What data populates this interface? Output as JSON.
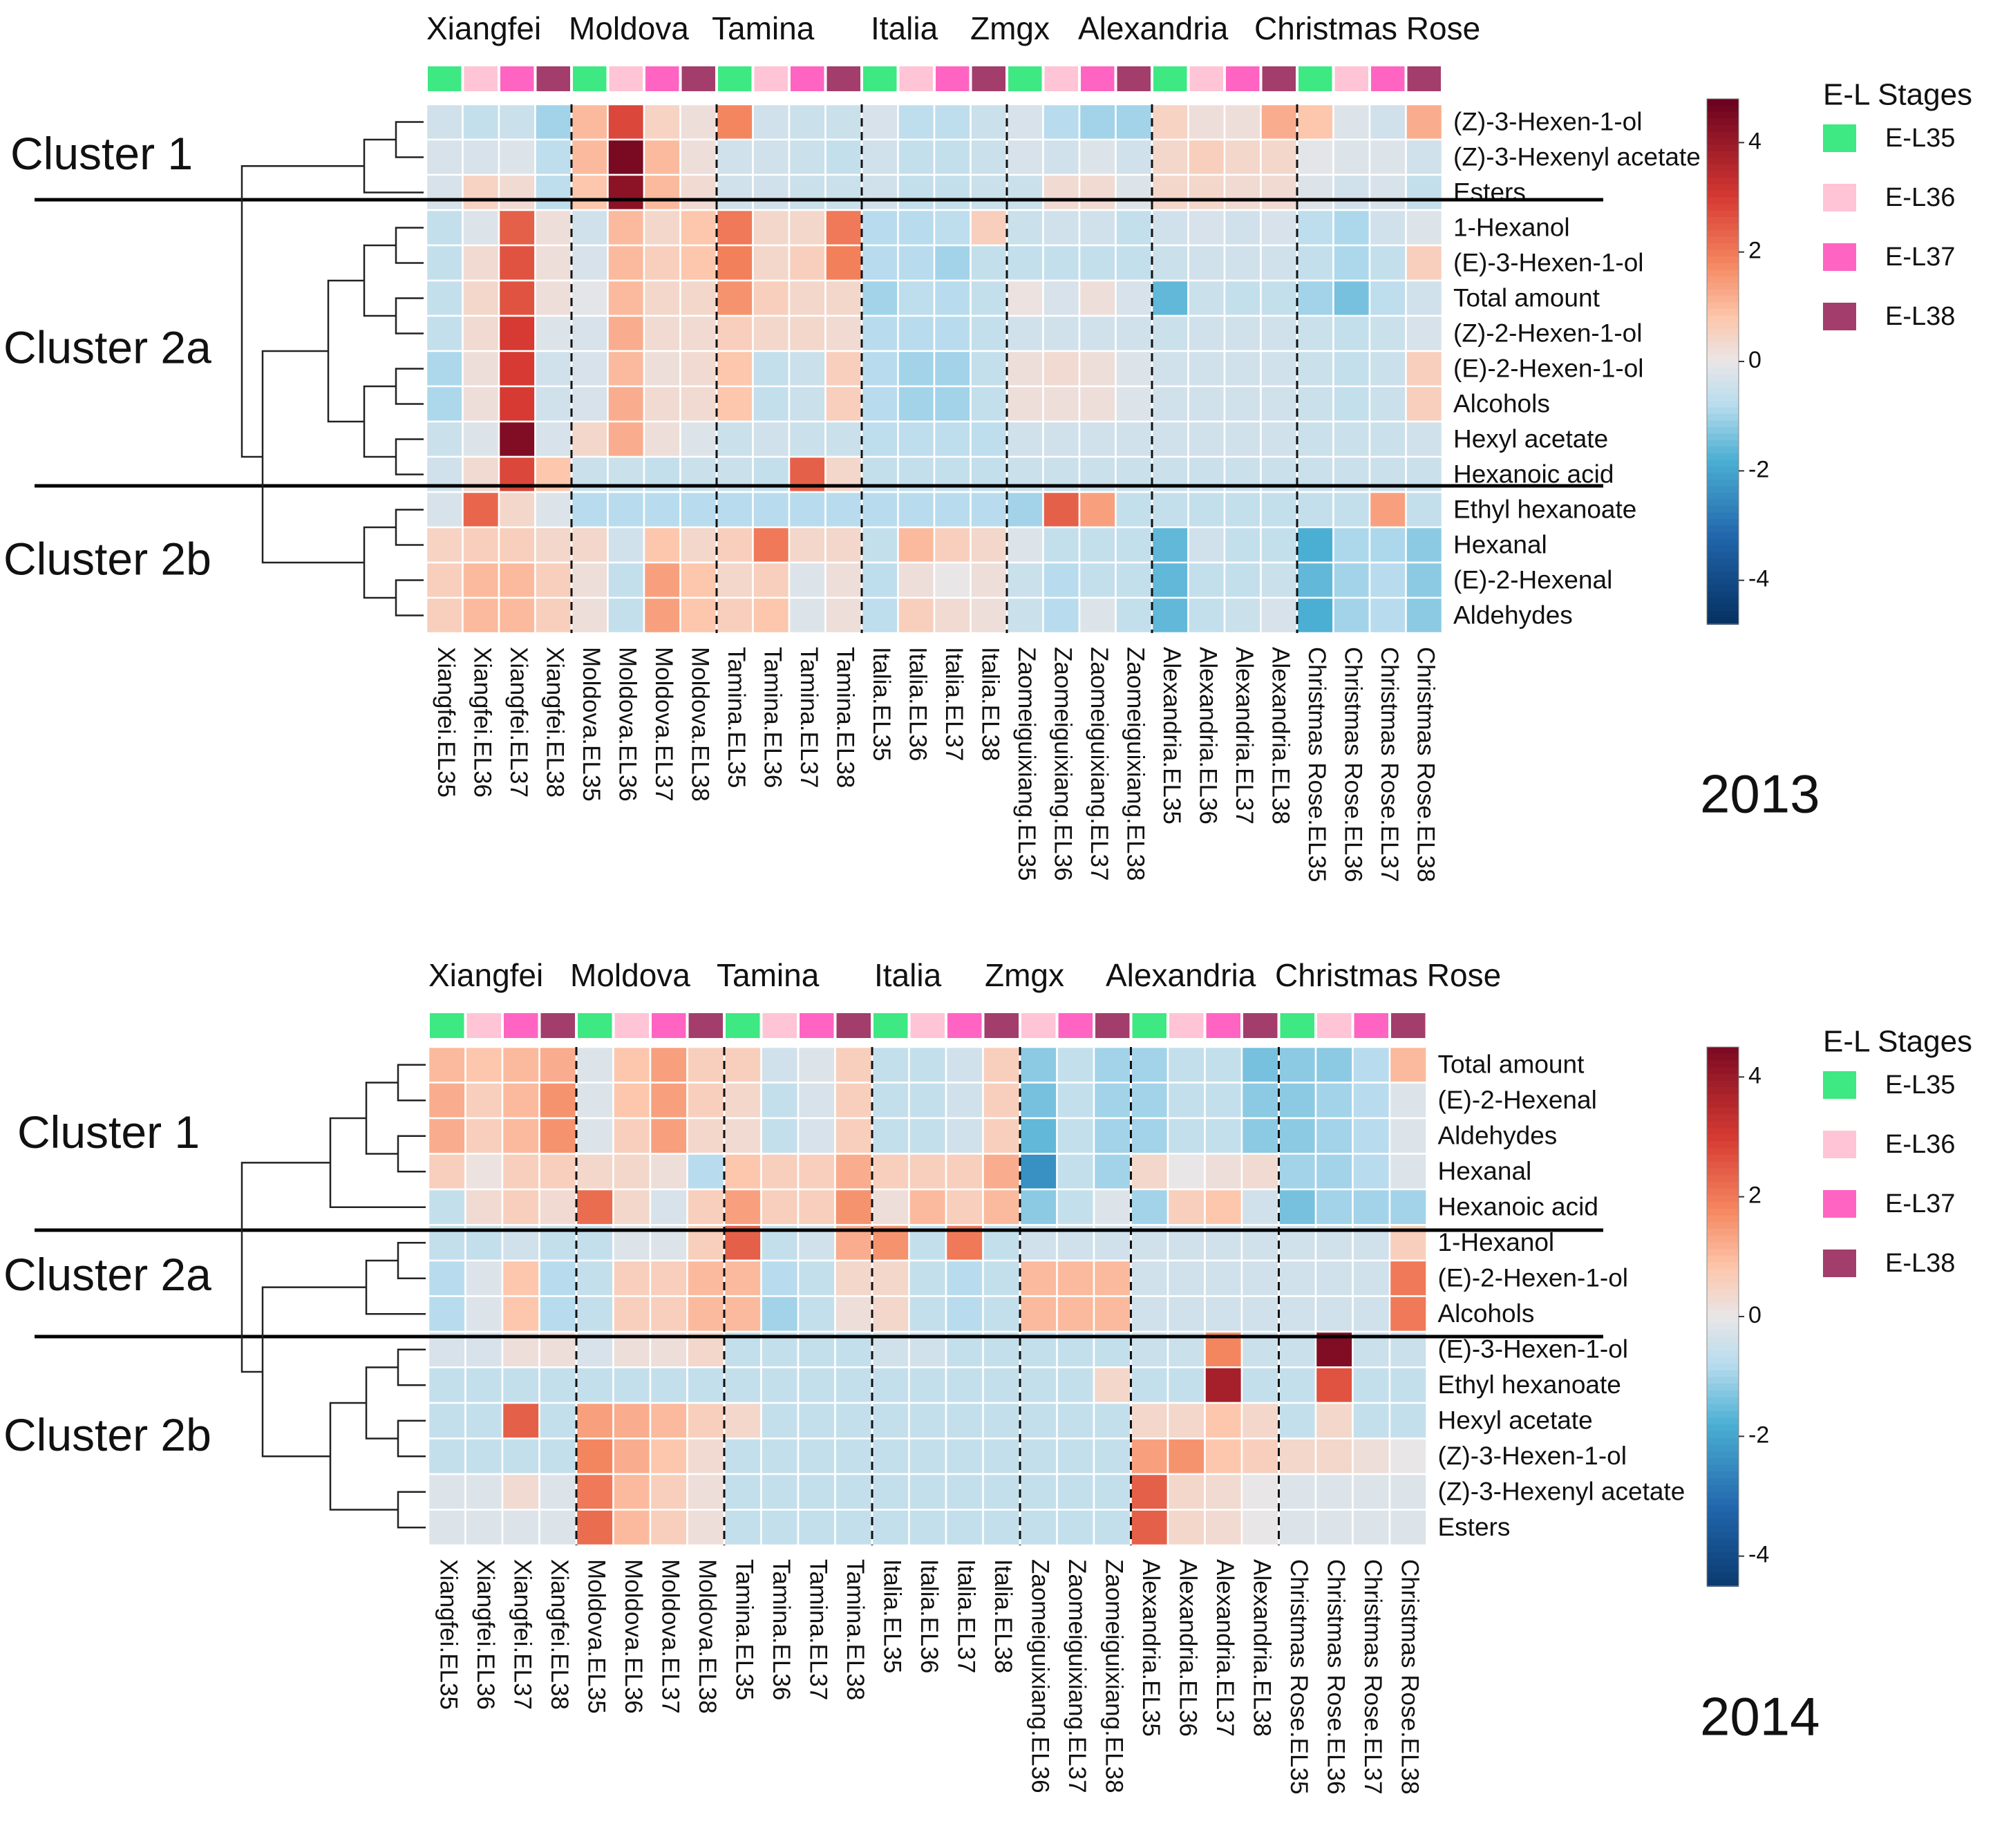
{
  "legend": {
    "title": "E-L Stages",
    "entries": [
      {
        "label": "E-L35",
        "color": "#3ee882"
      },
      {
        "label": "E-L36",
        "color": "#ffc4d6"
      },
      {
        "label": "E-L37",
        "color": "#ff64c3"
      },
      {
        "label": "E-L38",
        "color": "#a33d6b"
      }
    ]
  },
  "colorscale": {
    "stops": [
      {
        "v": -4.8,
        "c": "#053061"
      },
      {
        "v": -3.2,
        "c": "#2166ac"
      },
      {
        "v": -1.8,
        "c": "#4bafd3"
      },
      {
        "v": -0.8,
        "c": "#b8dcee"
      },
      {
        "v": 0,
        "c": "#e9e6e7"
      },
      {
        "v": 0.8,
        "c": "#fdc7ad"
      },
      {
        "v": 1.8,
        "c": "#f4865f"
      },
      {
        "v": 3.0,
        "c": "#d63a32"
      },
      {
        "v": 4.8,
        "c": "#67001f"
      }
    ]
  },
  "chart_data": [
    {
      "type": "heatmap",
      "title": "2013",
      "colorbar": {
        "ticks": [
          4,
          2,
          0,
          -2,
          -4
        ],
        "range": [
          -4.8,
          4.8
        ]
      },
      "group_labels": [
        "Xiangfei",
        "Moldova",
        "Tamina",
        "Italia",
        "Zmgx",
        "Alexandria",
        "Christmas Rose"
      ],
      "columns": [
        "Xiangfei.EL35",
        "Xiangfei.EL36",
        "Xiangfei.EL37",
        "Xiangfei.EL38",
        "Moldova.EL35",
        "Moldova.EL36",
        "Moldova.EL37",
        "Moldova.EL38",
        "Tamina.EL35",
        "Tamina.EL36",
        "Tamina.EL37",
        "Tamina.EL38",
        "Italia.EL35",
        "Italia.EL36",
        "Italia.EL37",
        "Italia.EL38",
        "Zaomeiguixiang.EL35",
        "Zaomeiguixiang.EL36",
        "Zaomeiguixiang.EL37",
        "Zaomeiguixiang.EL38",
        "Alexandria.EL35",
        "Alexandria.EL36",
        "Alexandria.EL37",
        "Alexandria.EL38",
        "Christmas Rose.EL35",
        "Christmas Rose.EL36",
        "Christmas Rose.EL37",
        "Christmas Rose.EL38"
      ],
      "column_stages": [
        0,
        1,
        2,
        3,
        0,
        1,
        2,
        3,
        0,
        1,
        2,
        3,
        0,
        1,
        2,
        3,
        0,
        1,
        2,
        3,
        0,
        1,
        2,
        3,
        0,
        1,
        2,
        3
      ],
      "clusters": [
        {
          "label": "Cluster 1",
          "rows": 3
        },
        {
          "label": "Cluster 2a",
          "rows": 8
        },
        {
          "label": "Cluster 2b",
          "rows": 4
        }
      ],
      "rows": [
        "(Z)-3-Hexen-1-ol",
        "(Z)-3-Hexenyl acetate",
        "Esters",
        "1-Hexanol",
        "(E)-3-Hexen-1-ol",
        "Total amount",
        "(Z)-2-Hexen-1-ol",
        "(E)-2-Hexen-1-ol",
        "Alcohols",
        "Hexyl acetate",
        "Hexanoic acid",
        "Ethyl hexanoate",
        "Hexanal",
        "(E)-2-Hexenal",
        "Aldehydes"
      ],
      "values": [
        [
          -0.4,
          -0.6,
          -0.5,
          -1.0,
          1.0,
          2.8,
          0.5,
          0.2,
          1.8,
          -0.4,
          -0.5,
          -0.5,
          -0.3,
          -0.7,
          -0.7,
          -0.5,
          -0.3,
          -0.8,
          -1.0,
          -1.0,
          0.5,
          0.2,
          0.2,
          1.2,
          0.8,
          -0.2,
          -0.4,
          1.2
        ],
        [
          -0.3,
          -0.3,
          -0.2,
          -0.7,
          1.0,
          4.5,
          1.0,
          0.2,
          -0.4,
          -0.4,
          -0.5,
          -0.6,
          -0.4,
          -0.6,
          -0.6,
          -0.5,
          -0.3,
          -0.4,
          -0.2,
          -0.4,
          0.4,
          0.6,
          0.4,
          0.4,
          -0.1,
          -0.2,
          -0.2,
          -0.4
        ],
        [
          -0.3,
          0.5,
          0.3,
          -0.7,
          0.8,
          4.2,
          1.0,
          0.3,
          -0.4,
          -0.4,
          -0.5,
          -0.5,
          -0.4,
          -0.6,
          -0.6,
          -0.5,
          -0.5,
          0.3,
          0.3,
          -0.2,
          0.4,
          0.4,
          0.3,
          0.3,
          -0.2,
          -0.4,
          -0.3,
          -0.6
        ],
        [
          -0.6,
          -0.2,
          2.4,
          0.2,
          -0.4,
          1.0,
          0.4,
          0.8,
          2.0,
          0.4,
          0.4,
          2.0,
          -0.8,
          -0.8,
          -0.7,
          0.6,
          -0.5,
          -0.4,
          -0.4,
          -0.6,
          -0.4,
          -0.3,
          -0.4,
          -0.3,
          -0.7,
          -0.9,
          -0.4,
          -0.2
        ],
        [
          -0.6,
          0.3,
          2.6,
          0.2,
          -0.3,
          1.0,
          0.6,
          0.8,
          1.9,
          0.4,
          0.6,
          1.9,
          -0.8,
          -0.8,
          -1.0,
          -0.6,
          -0.6,
          -0.6,
          -0.6,
          -0.6,
          -0.5,
          -0.4,
          -0.4,
          -0.4,
          -0.6,
          -0.9,
          -0.6,
          0.6
        ],
        [
          -0.6,
          0.4,
          2.6,
          0.2,
          -0.1,
          1.0,
          0.4,
          0.4,
          1.6,
          0.6,
          0.4,
          0.4,
          -1.0,
          -0.7,
          -0.8,
          -0.6,
          0.1,
          -0.3,
          0.2,
          -0.3,
          -1.6,
          -0.5,
          -0.6,
          -0.6,
          -1.0,
          -1.4,
          -0.7,
          -0.4
        ],
        [
          -0.6,
          0.3,
          3.0,
          -0.2,
          -0.3,
          1.2,
          0.3,
          0.3,
          0.6,
          0.4,
          0.4,
          0.3,
          -0.8,
          -0.8,
          -0.8,
          -0.6,
          -0.4,
          -0.4,
          -0.4,
          -0.4,
          -0.5,
          -0.4,
          -0.4,
          -0.4,
          -0.5,
          -0.6,
          -0.5,
          -0.3
        ],
        [
          -0.9,
          0.2,
          3.0,
          -0.4,
          -0.3,
          1.0,
          0.2,
          0.3,
          0.8,
          -0.6,
          -0.5,
          0.6,
          -0.8,
          -1.0,
          -1.0,
          -0.6,
          0.2,
          0.3,
          0.2,
          -0.2,
          -0.4,
          -0.4,
          -0.4,
          -0.4,
          -0.5,
          -0.6,
          -0.5,
          0.6
        ],
        [
          -0.9,
          0.2,
          3.0,
          -0.4,
          -0.3,
          1.2,
          0.3,
          0.3,
          0.8,
          -0.6,
          -0.5,
          0.6,
          -0.8,
          -1.0,
          -1.0,
          -0.6,
          0.2,
          0.2,
          0.2,
          -0.2,
          -0.4,
          -0.4,
          -0.4,
          -0.4,
          -0.5,
          -0.6,
          -0.5,
          0.6
        ],
        [
          -0.5,
          -0.2,
          4.4,
          -0.3,
          0.4,
          1.2,
          0.2,
          -0.2,
          -0.5,
          -0.4,
          -0.5,
          -0.5,
          -0.7,
          -0.7,
          -0.7,
          -0.7,
          -0.4,
          -0.4,
          -0.4,
          -0.4,
          -0.4,
          -0.4,
          -0.4,
          -0.4,
          -0.5,
          -0.5,
          -0.5,
          -0.4
        ],
        [
          -0.4,
          0.3,
          2.8,
          0.8,
          -0.5,
          -0.5,
          -0.6,
          -0.5,
          -0.5,
          -0.6,
          2.4,
          0.4,
          -0.6,
          -0.6,
          -0.6,
          -0.6,
          -0.5,
          -0.5,
          -0.5,
          -0.5,
          -0.5,
          -0.5,
          -0.5,
          -0.5,
          -0.5,
          -0.5,
          -0.5,
          -0.5
        ],
        [
          -0.3,
          2.3,
          0.4,
          -0.2,
          -0.8,
          -0.8,
          -0.8,
          -0.8,
          -0.8,
          -0.8,
          -0.8,
          -0.8,
          -0.8,
          -0.8,
          -0.8,
          -0.8,
          -1.0,
          2.4,
          1.4,
          -0.6,
          -0.6,
          -0.6,
          -0.6,
          -0.6,
          -0.6,
          -0.6,
          1.4,
          -0.6
        ],
        [
          0.5,
          0.6,
          0.6,
          0.4,
          0.4,
          -0.4,
          0.8,
          0.4,
          0.6,
          2.0,
          0.4,
          0.4,
          -0.6,
          1.0,
          0.6,
          0.4,
          -0.2,
          -0.6,
          -0.6,
          -0.6,
          -1.6,
          -0.4,
          -0.6,
          -0.6,
          -1.8,
          -0.9,
          -0.9,
          -1.2
        ],
        [
          0.6,
          1.0,
          1.0,
          0.6,
          0.2,
          -0.6,
          1.4,
          0.8,
          0.4,
          0.6,
          -0.2,
          0.2,
          -0.7,
          0.2,
          0.0,
          0.2,
          -0.5,
          -0.8,
          -0.6,
          -0.6,
          -1.6,
          -0.6,
          -0.6,
          -0.5,
          -1.6,
          -1.0,
          -0.8,
          -1.2
        ],
        [
          0.6,
          1.0,
          1.0,
          0.6,
          0.2,
          -0.6,
          1.4,
          0.8,
          0.6,
          0.8,
          -0.2,
          0.2,
          -0.7,
          0.6,
          0.3,
          0.2,
          -0.5,
          -0.8,
          -0.2,
          -0.6,
          -1.6,
          -0.6,
          -0.5,
          -0.3,
          -1.8,
          -1.0,
          -0.8,
          -1.2
        ]
      ]
    },
    {
      "type": "heatmap",
      "title": "2014",
      "colorbar": {
        "ticks": [
          4,
          2,
          0,
          -2,
          -4
        ],
        "range": [
          -4.5,
          4.5
        ]
      },
      "group_labels": [
        "Xiangfei",
        "Moldova",
        "Tamina",
        "Italia",
        "Zmgx",
        "Alexandria",
        "Christmas Rose"
      ],
      "columns": [
        "Xiangfei.EL35",
        "Xiangfei.EL36",
        "Xiangfei.EL37",
        "Xiangfei.EL38",
        "Moldova.EL35",
        "Moldova.EL36",
        "Moldova.EL37",
        "Moldova.EL38",
        "Tamina.EL35",
        "Tamina.EL36",
        "Tamina.EL37",
        "Tamina.EL38",
        "Italia.EL35",
        "Italia.EL36",
        "Italia.EL37",
        "Italia.EL38",
        "Zaomeiguixiang.EL36",
        "Zaomeiguixiang.EL37",
        "Zaomeiguixiang.EL38",
        "Alexandria.EL35",
        "Alexandria.EL36",
        "Alexandria.EL37",
        "Alexandria.EL38",
        "Christmas Rose.EL35",
        "Christmas Rose.EL36",
        "Christmas Rose.EL37",
        "Christmas Rose.EL38"
      ],
      "column_stages": [
        0,
        1,
        2,
        3,
        0,
        1,
        2,
        3,
        0,
        1,
        2,
        3,
        0,
        1,
        2,
        3,
        1,
        2,
        3,
        0,
        1,
        2,
        3,
        0,
        1,
        2,
        3
      ],
      "clusters": [
        {
          "label": "Cluster 1",
          "rows": 5
        },
        {
          "label": "Cluster 2a",
          "rows": 3
        },
        {
          "label": "Cluster 2b",
          "rows": 6
        }
      ],
      "rows": [
        "Total amount",
        "(E)-2-Hexenal",
        "Aldehydes",
        "Hexanal",
        "Hexanoic acid",
        "1-Hexanol",
        "(E)-2-Hexen-1-ol",
        "Alcohols",
        "(E)-3-Hexen-1-ol",
        "Ethyl hexanoate",
        "Hexyl acetate",
        "(Z)-3-Hexen-1-ol",
        "(Z)-3-Hexenyl acetate",
        "Esters"
      ],
      "values": [
        [
          1.0,
          0.8,
          1.0,
          1.2,
          -0.2,
          0.8,
          1.4,
          0.6,
          0.6,
          -0.4,
          -0.2,
          0.6,
          -0.6,
          -0.6,
          -0.4,
          0.6,
          -1.2,
          -0.6,
          -1.0,
          -1.0,
          -0.6,
          -0.6,
          -1.4,
          -1.2,
          -1.2,
          -0.8,
          1.0
        ],
        [
          1.2,
          0.6,
          1.0,
          1.6,
          -0.2,
          0.8,
          1.4,
          0.6,
          0.4,
          -0.6,
          -0.3,
          0.6,
          -0.6,
          -0.6,
          -0.4,
          0.6,
          -1.4,
          -0.6,
          -1.0,
          -1.0,
          -0.6,
          -0.6,
          -1.2,
          -1.2,
          -1.0,
          -0.8,
          -0.2
        ],
        [
          1.2,
          0.6,
          1.0,
          1.6,
          -0.2,
          0.6,
          1.4,
          0.4,
          0.3,
          -0.6,
          -0.3,
          0.6,
          -0.6,
          -0.6,
          -0.4,
          0.6,
          -1.6,
          -0.6,
          -1.0,
          -1.0,
          -0.6,
          -0.6,
          -1.2,
          -1.2,
          -1.0,
          -0.8,
          -0.2
        ],
        [
          0.6,
          0.1,
          0.6,
          0.6,
          0.4,
          0.4,
          0.2,
          -0.8,
          0.8,
          0.6,
          0.6,
          1.2,
          0.6,
          0.6,
          0.6,
          1.2,
          -2.4,
          -0.6,
          -1.0,
          0.4,
          0.0,
          0.2,
          0.3,
          -1.0,
          -1.0,
          -0.8,
          -0.2
        ],
        [
          -0.6,
          0.3,
          0.6,
          0.3,
          2.2,
          0.4,
          -0.3,
          0.6,
          1.4,
          0.6,
          0.6,
          1.6,
          0.2,
          1.0,
          0.6,
          1.0,
          -1.2,
          -0.6,
          -0.2,
          -1.0,
          0.6,
          0.8,
          -0.4,
          -1.4,
          -1.0,
          -1.0,
          -1.0
        ],
        [
          -0.6,
          -0.6,
          -0.4,
          -0.6,
          -0.6,
          -0.2,
          -0.2,
          0.6,
          2.4,
          -0.6,
          -0.4,
          1.2,
          1.6,
          -0.6,
          2.0,
          -0.6,
          -0.4,
          -0.4,
          -0.4,
          -0.4,
          -0.4,
          -0.4,
          -0.4,
          -0.4,
          -0.4,
          -0.4,
          0.6
        ],
        [
          -0.8,
          -0.2,
          0.8,
          -0.8,
          -0.6,
          0.6,
          0.6,
          1.0,
          1.0,
          -0.8,
          -0.6,
          0.4,
          0.4,
          -0.6,
          -0.8,
          -0.6,
          1.0,
          1.0,
          1.0,
          -0.4,
          -0.4,
          -0.4,
          -0.4,
          -0.4,
          -0.4,
          -0.4,
          2.0
        ],
        [
          -0.8,
          -0.2,
          0.8,
          -0.8,
          -0.6,
          0.6,
          0.6,
          1.0,
          1.0,
          -1.0,
          -0.6,
          0.2,
          0.4,
          -0.6,
          -0.8,
          -0.6,
          1.0,
          1.0,
          1.0,
          -0.4,
          -0.4,
          -0.4,
          -0.4,
          -0.4,
          -0.4,
          -0.4,
          2.0
        ],
        [
          -0.3,
          -0.3,
          0.2,
          0.2,
          -0.3,
          0.2,
          0.2,
          0.4,
          -0.6,
          -0.6,
          -0.6,
          -0.6,
          -0.4,
          -0.4,
          -0.6,
          -0.6,
          -0.6,
          -0.6,
          -0.6,
          -0.5,
          -0.5,
          1.8,
          -0.5,
          -0.5,
          4.4,
          -0.5,
          -0.5
        ],
        [
          -0.6,
          -0.6,
          -0.6,
          -0.6,
          -0.6,
          -0.6,
          -0.6,
          -0.6,
          -0.6,
          -0.6,
          -0.6,
          -0.6,
          -0.6,
          -0.6,
          -0.6,
          -0.6,
          -0.6,
          -0.6,
          0.4,
          -0.6,
          -0.6,
          3.8,
          -0.6,
          -0.6,
          2.6,
          -0.6,
          -0.6
        ],
        [
          -0.6,
          -0.6,
          2.4,
          -0.6,
          1.4,
          1.2,
          1.0,
          0.6,
          0.4,
          -0.6,
          -0.6,
          -0.6,
          -0.6,
          -0.6,
          -0.6,
          -0.6,
          -0.6,
          -0.6,
          -0.6,
          0.4,
          0.4,
          0.8,
          0.4,
          -0.6,
          0.4,
          -0.6,
          -0.6
        ],
        [
          -0.6,
          -0.6,
          -0.6,
          -0.6,
          1.8,
          1.2,
          0.8,
          0.3,
          -0.6,
          -0.6,
          -0.6,
          -0.6,
          -0.6,
          -0.6,
          -0.6,
          -0.6,
          -0.6,
          -0.6,
          -0.6,
          1.4,
          1.6,
          0.8,
          0.6,
          0.4,
          0.4,
          0.2,
          0.0
        ],
        [
          -0.2,
          -0.2,
          0.3,
          -0.2,
          2.0,
          1.0,
          0.6,
          0.2,
          -0.6,
          -0.6,
          -0.6,
          -0.6,
          -0.6,
          -0.6,
          -0.6,
          -0.6,
          -0.6,
          -0.6,
          -0.6,
          2.4,
          0.4,
          0.3,
          0.0,
          -0.2,
          -0.2,
          -0.2,
          -0.2
        ],
        [
          -0.2,
          -0.2,
          -0.2,
          -0.2,
          2.2,
          1.0,
          0.6,
          0.2,
          -0.6,
          -0.6,
          -0.6,
          -0.6,
          -0.6,
          -0.6,
          -0.6,
          -0.6,
          -0.6,
          -0.6,
          -0.6,
          2.4,
          0.4,
          0.3,
          0.0,
          -0.2,
          -0.2,
          -0.2,
          -0.2
        ]
      ]
    }
  ]
}
